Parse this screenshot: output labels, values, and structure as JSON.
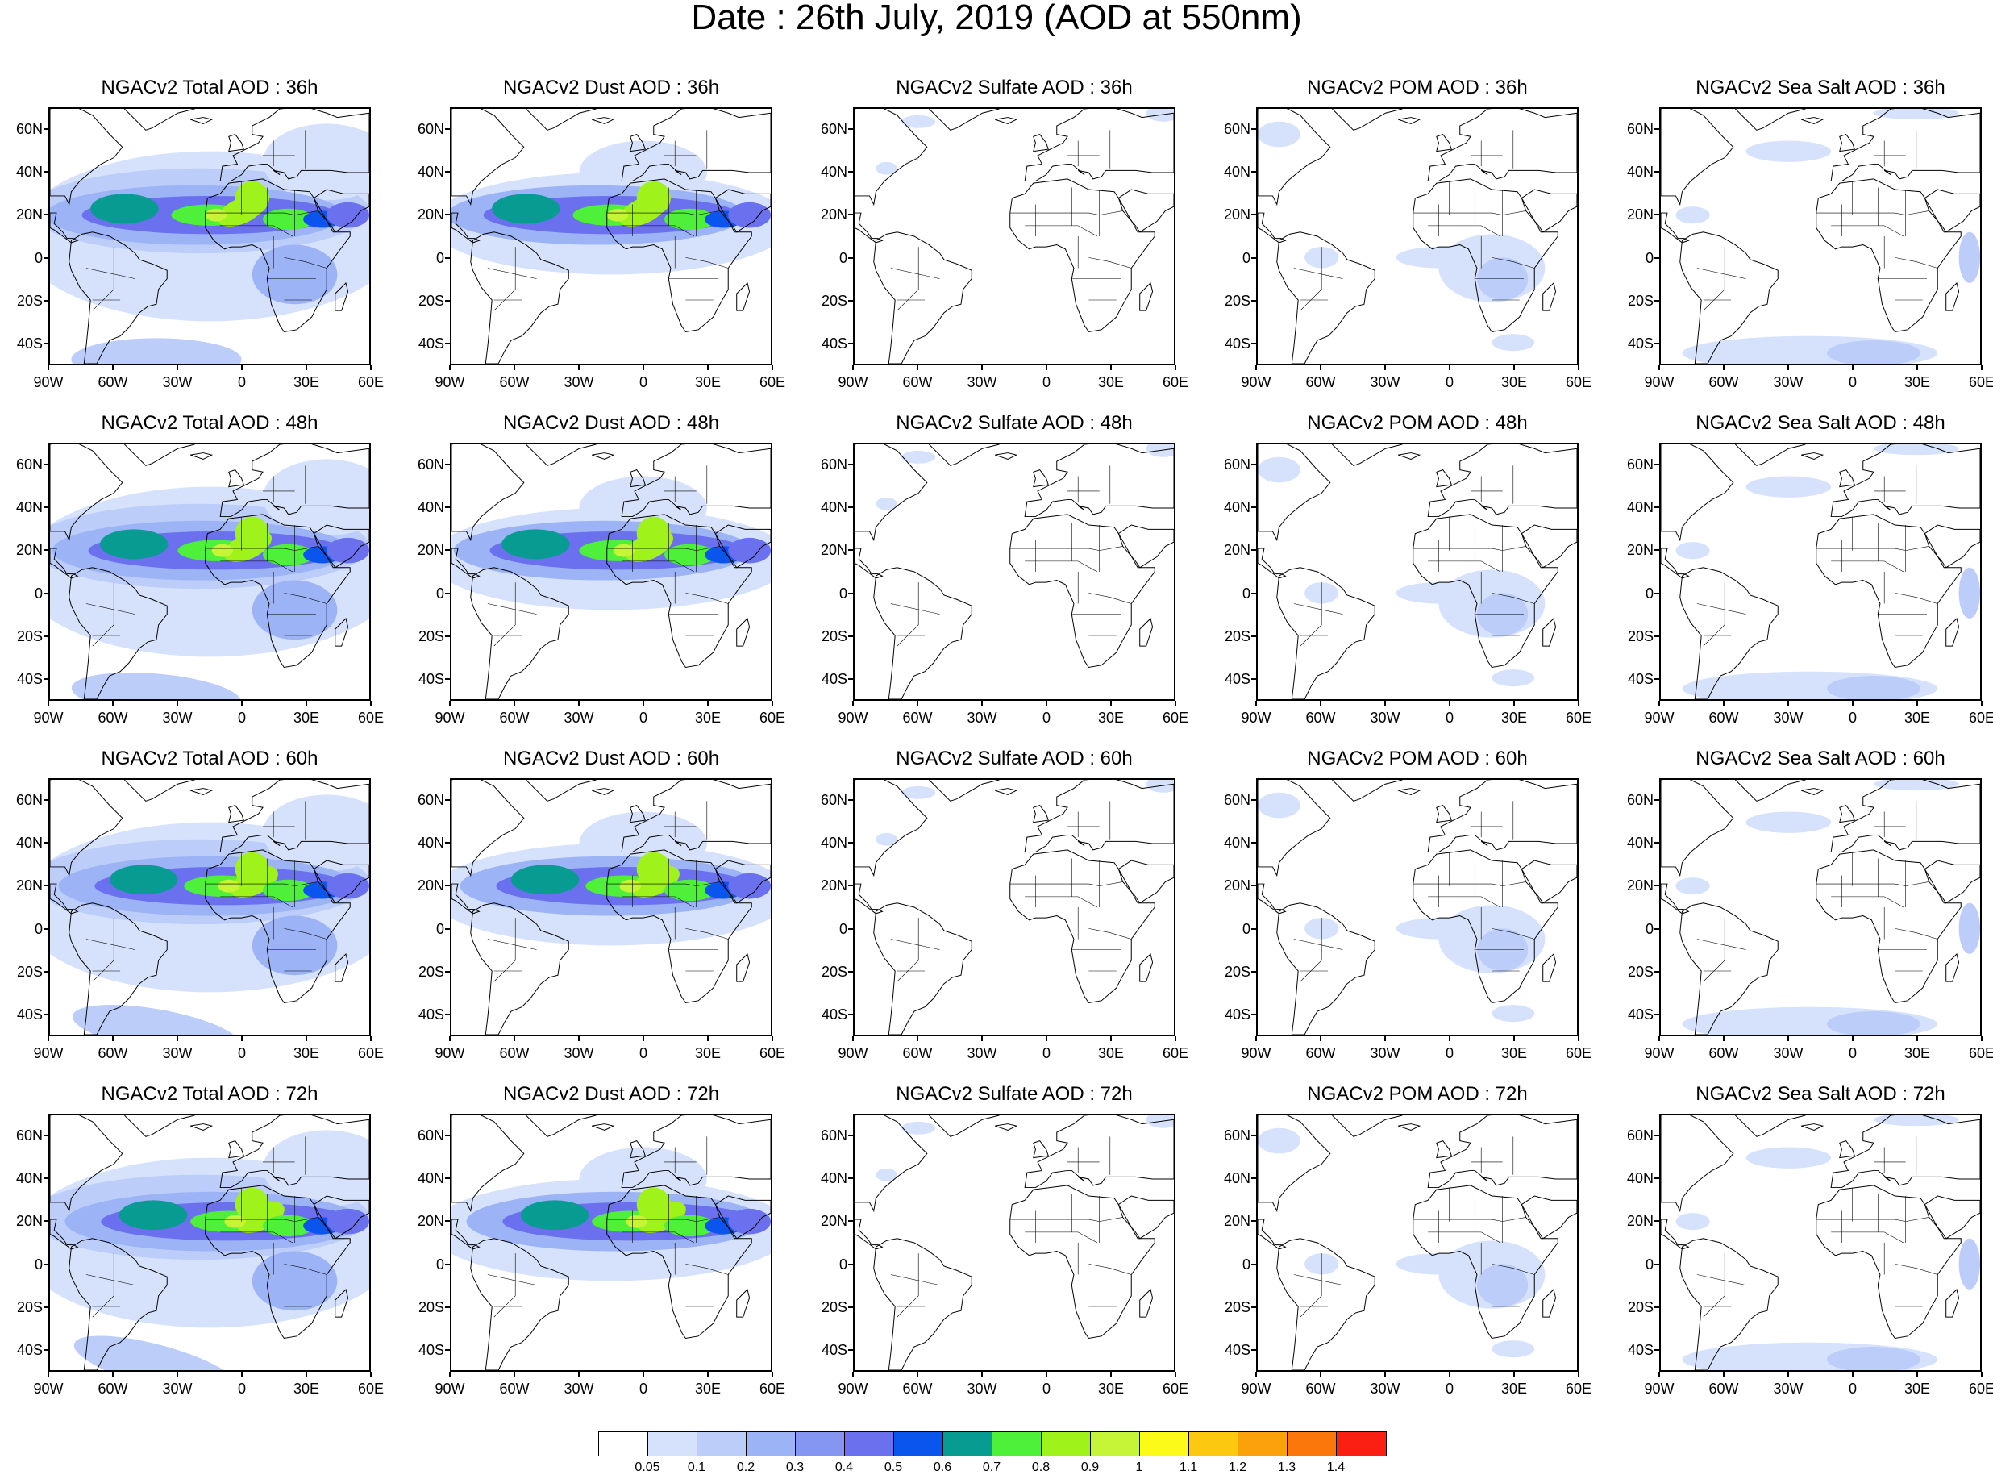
{
  "title": "Date : 26th July, 2019 (AOD at 550nm)",
  "panels": [
    [
      "NGACv2 Total AOD : 36h",
      "NGACv2 Dust AOD : 36h",
      "NGACv2 Sulfate AOD : 36h",
      "NGACv2 POM AOD : 36h",
      "NGACv2 Sea Salt AOD : 36h"
    ],
    [
      "NGACv2 Total AOD : 48h",
      "NGACv2 Dust AOD : 48h",
      "NGACv2 Sulfate AOD : 48h",
      "NGACv2 POM AOD : 48h",
      "NGACv2 Sea Salt AOD : 48h"
    ],
    [
      "NGACv2 Total AOD : 60h",
      "NGACv2 Dust AOD : 60h",
      "NGACv2 Sulfate AOD : 60h",
      "NGACv2 POM AOD : 60h",
      "NGACv2 Sea Salt AOD : 60h"
    ],
    [
      "NGACv2 Total AOD : 72h",
      "NGACv2 Dust AOD : 72h",
      "NGACv2 Sulfate AOD : 72h",
      "NGACv2 POM AOD : 72h",
      "NGACv2 Sea Salt  AOD : 72h"
    ]
  ],
  "panel_species": [
    "total",
    "dust",
    "sulfate",
    "pom",
    "seasalt"
  ],
  "lat_ticks": [
    "60N",
    "40N",
    "20N",
    "0",
    "20S",
    "40S"
  ],
  "lon_ticks": [
    "90W",
    "60W",
    "30W",
    "0",
    "30E",
    "60E"
  ],
  "colorbar": {
    "colors": [
      "#ffffff",
      "#d6e2fb",
      "#bccdf9",
      "#9cb3f6",
      "#8595f2",
      "#6a70ee",
      "#0a55ee",
      "#089b92",
      "#4ef03a",
      "#9ff21a",
      "#c6f437",
      "#fcfa19",
      "#fcc810",
      "#fca00c",
      "#fb770c",
      "#fa1f12"
    ],
    "labels": [
      "0.05",
      "0.1",
      "0.2",
      "0.3",
      "0.4",
      "0.5",
      "0.6",
      "0.7",
      "0.8",
      "0.9",
      "1",
      "1.1",
      "1.2",
      "1.3",
      "1.4"
    ]
  }
}
